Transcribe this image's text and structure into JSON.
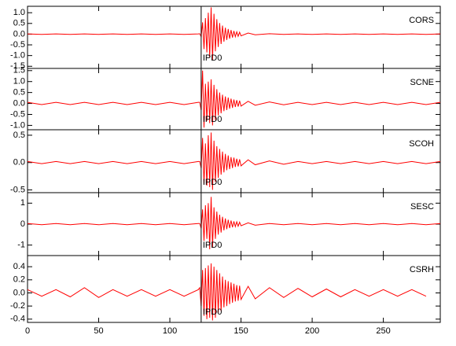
{
  "chart_data": [
    {
      "type": "line",
      "label": "CORS",
      "annotation": "IPD0",
      "marker_x": 122,
      "color": "#ff0000",
      "xlim": [
        0,
        290
      ],
      "xticks": [
        0,
        50,
        100,
        150,
        200,
        250
      ],
      "ylim": [
        -1.6,
        1.3
      ],
      "yticks": [
        {
          "value": 1,
          "label": "1.0"
        },
        0.5,
        {
          "value": 0,
          "label": "0.0"
        },
        -0.5,
        {
          "value": -1,
          "label": "-1.0"
        },
        -1.5
      ],
      "x": [
        0,
        10,
        20,
        30,
        40,
        50,
        60,
        70,
        80,
        90,
        100,
        110,
        120,
        121,
        122,
        123,
        124,
        125,
        126,
        127,
        128,
        129,
        130,
        131,
        132,
        133,
        134,
        135,
        136,
        137,
        138,
        139,
        140,
        141,
        142,
        143,
        144,
        145,
        146,
        147,
        148,
        149,
        150,
        155,
        160,
        170,
        180,
        190,
        200,
        210,
        220,
        230,
        240,
        250,
        260,
        270,
        280,
        290
      ],
      "values": [
        0.01,
        -0.01,
        0.01,
        -0.01,
        0.01,
        -0.01,
        0.01,
        -0.01,
        0.01,
        -0.01,
        0.01,
        -0.01,
        0.01,
        0.02,
        -0.12,
        0.55,
        -0.7,
        0.75,
        -0.85,
        1.0,
        -1.1,
        1.25,
        -1.2,
        0.95,
        -0.8,
        0.7,
        -0.6,
        0.52,
        -0.46,
        0.4,
        -0.35,
        0.3,
        -0.27,
        0.24,
        -0.21,
        0.19,
        -0.16,
        0.15,
        -0.12,
        0.11,
        -0.1,
        0.09,
        -0.08,
        0.05,
        -0.03,
        0.02,
        -0.01,
        0.01,
        -0.01,
        0.01,
        -0.01,
        0.01,
        -0.01,
        0.01,
        -0.01,
        0.01,
        -0.01,
        0.01
      ]
    },
    {
      "type": "line",
      "label": "SCNE",
      "annotation": "IPD0",
      "marker_x": 122,
      "color": "#ff0000",
      "xlim": [
        0,
        290
      ],
      "xticks": [
        0,
        50,
        100,
        150,
        200,
        250
      ],
      "ylim": [
        -1.2,
        1.6
      ],
      "yticks": [
        1.5,
        {
          "value": 1,
          "label": "1.0"
        },
        0.5,
        {
          "value": 0,
          "label": "0.0"
        },
        -0.5,
        {
          "value": -1,
          "label": "-1.0"
        }
      ],
      "x": [
        0,
        10,
        20,
        30,
        40,
        50,
        60,
        70,
        80,
        90,
        100,
        110,
        120,
        121,
        122,
        123,
        124,
        125,
        126,
        127,
        128,
        129,
        130,
        131,
        132,
        133,
        134,
        135,
        136,
        137,
        138,
        139,
        140,
        141,
        142,
        143,
        144,
        145,
        146,
        147,
        148,
        149,
        150,
        155,
        160,
        170,
        180,
        190,
        200,
        210,
        220,
        230,
        240,
        250,
        260,
        270,
        280,
        290
      ],
      "values": [
        0.05,
        -0.05,
        0.05,
        -0.05,
        0.05,
        -0.05,
        0.05,
        -0.05,
        0.05,
        -0.05,
        0.05,
        -0.05,
        0.05,
        0.05,
        -0.3,
        1.5,
        -1.1,
        0.9,
        -0.8,
        1.0,
        -0.9,
        1.1,
        -1.0,
        0.85,
        -0.75,
        0.65,
        -0.55,
        0.5,
        -0.45,
        0.4,
        -0.35,
        0.32,
        -0.3,
        0.27,
        -0.24,
        0.22,
        -0.2,
        0.18,
        -0.16,
        0.15,
        -0.14,
        0.13,
        -0.12,
        0.1,
        -0.08,
        0.07,
        -0.06,
        0.05,
        -0.05,
        0.05,
        -0.05,
        0.05,
        -0.05,
        0.05,
        -0.05,
        0.05,
        -0.05,
        0.05
      ]
    },
    {
      "type": "line",
      "label": "SCOH",
      "annotation": "IPD0",
      "marker_x": 122,
      "color": "#ff0000",
      "xlim": [
        0,
        290
      ],
      "xticks": [
        0,
        50,
        100,
        150,
        200,
        250
      ],
      "ylim": [
        -0.55,
        0.6
      ],
      "yticks": [
        0.5,
        {
          "value": 0,
          "label": "0.0"
        },
        -0.5
      ],
      "x": [
        0,
        10,
        20,
        30,
        40,
        50,
        60,
        70,
        80,
        90,
        100,
        110,
        120,
        121,
        122,
        123,
        124,
        125,
        126,
        127,
        128,
        129,
        130,
        131,
        132,
        133,
        134,
        135,
        136,
        137,
        138,
        139,
        140,
        141,
        142,
        143,
        144,
        145,
        146,
        147,
        148,
        149,
        150,
        155,
        160,
        170,
        180,
        190,
        200,
        210,
        220,
        230,
        240,
        250,
        260,
        270,
        280,
        290
      ],
      "values": [
        0.02,
        -0.02,
        0.02,
        -0.02,
        0.02,
        -0.02,
        0.02,
        -0.02,
        0.02,
        -0.02,
        0.02,
        -0.02,
        0.02,
        0.02,
        -0.1,
        0.45,
        -0.4,
        0.35,
        -0.42,
        0.5,
        -0.45,
        0.55,
        -0.5,
        0.4,
        -0.35,
        0.3,
        -0.28,
        0.25,
        -0.22,
        0.2,
        -0.18,
        0.16,
        -0.14,
        0.13,
        -0.12,
        0.1,
        -0.1,
        0.09,
        -0.08,
        0.07,
        -0.07,
        0.06,
        -0.06,
        0.05,
        -0.04,
        0.03,
        -0.03,
        0.02,
        -0.02,
        0.02,
        -0.02,
        0.02,
        -0.02,
        0.02,
        -0.02,
        0.02,
        -0.02,
        0.02
      ]
    },
    {
      "type": "line",
      "label": "SESC",
      "annotation": "IPD0",
      "marker_x": 122,
      "color": "#ff0000",
      "xlim": [
        0,
        290
      ],
      "xticks": [
        0,
        50,
        100,
        150,
        200,
        250
      ],
      "ylim": [
        -1.5,
        1.5
      ],
      "yticks": [
        1,
        0,
        -1
      ],
      "x": [
        0,
        10,
        20,
        30,
        40,
        50,
        60,
        70,
        80,
        90,
        100,
        110,
        120,
        121,
        122,
        123,
        124,
        125,
        126,
        127,
        128,
        129,
        130,
        131,
        132,
        133,
        134,
        135,
        136,
        137,
        138,
        139,
        140,
        141,
        142,
        143,
        144,
        145,
        146,
        147,
        148,
        149,
        150,
        155,
        160,
        170,
        180,
        190,
        200,
        210,
        220,
        230,
        240,
        250,
        260,
        270,
        280,
        290
      ],
      "values": [
        0.03,
        -0.03,
        0.03,
        -0.03,
        0.03,
        -0.03,
        0.03,
        -0.03,
        0.03,
        -0.03,
        0.03,
        -0.03,
        0.03,
        0.03,
        -0.2,
        0.7,
        -0.8,
        0.9,
        -0.7,
        1.0,
        -1.2,
        1.3,
        -1.1,
        0.8,
        -0.7,
        0.6,
        -0.5,
        0.45,
        -0.4,
        0.35,
        -0.3,
        0.27,
        -0.24,
        0.21,
        -0.19,
        0.17,
        -0.15,
        0.13,
        -0.12,
        0.11,
        -0.1,
        0.09,
        -0.08,
        0.06,
        -0.05,
        0.03,
        -0.03,
        0.03,
        -0.03,
        0.03,
        -0.03,
        0.03,
        -0.03,
        0.03,
        -0.03,
        0.03,
        -0.03,
        0.03
      ]
    },
    {
      "type": "line",
      "label": "CSRH",
      "annotation": "IPD0",
      "marker_x": 122,
      "color": "#ff0000",
      "xlim": [
        0,
        290
      ],
      "xticks": [
        0,
        50,
        100,
        150,
        200,
        250
      ],
      "ylim": [
        -0.45,
        0.57
      ],
      "yticks": [
        0.4,
        0.2,
        {
          "value": 0,
          "label": "0.0"
        },
        -0.2,
        -0.4
      ],
      "x": [
        0,
        10,
        20,
        30,
        40,
        50,
        60,
        70,
        80,
        90,
        100,
        110,
        120,
        121,
        122,
        123,
        124,
        125,
        126,
        127,
        128,
        129,
        130,
        131,
        132,
        133,
        134,
        135,
        136,
        137,
        138,
        139,
        140,
        141,
        142,
        143,
        144,
        145,
        146,
        147,
        148,
        149,
        150,
        155,
        160,
        170,
        180,
        190,
        200,
        210,
        220,
        230,
        240,
        250,
        260,
        270,
        280,
        290
      ],
      "values": [
        0.05,
        -0.05,
        0.05,
        -0.06,
        0.08,
        -0.07,
        0.05,
        -0.05,
        0.05,
        -0.05,
        0.05,
        -0.05,
        0.05,
        0.08,
        -0.2,
        0.35,
        -0.35,
        0.38,
        -0.4,
        0.42,
        -0.38,
        0.45,
        -0.42,
        0.4,
        -0.38,
        0.35,
        -0.3,
        0.3,
        -0.28,
        0.25,
        -0.22,
        0.2,
        -0.2,
        0.18,
        -0.17,
        0.16,
        -0.15,
        0.14,
        -0.13,
        0.12,
        -0.12,
        0.11,
        -0.1,
        0.1,
        -0.09,
        0.08,
        -0.07,
        0.07,
        -0.06,
        0.06,
        -0.06,
        0.05,
        -0.05,
        0.05,
        -0.05,
        0.05,
        -0.05,
        null
      ]
    }
  ]
}
